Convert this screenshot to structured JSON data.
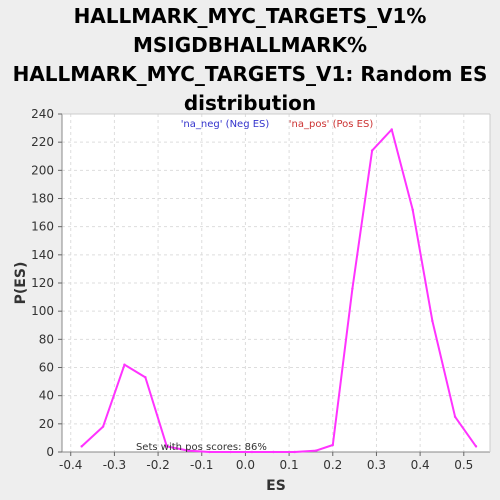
{
  "chart_data": {
    "type": "line",
    "title_lines": [
      "HALLMARK_MYC_TARGETS_V1%",
      "MSIGDBHALLMARK%",
      "HALLMARK_MYC_TARGETS_V1: Random ES",
      "distribution"
    ],
    "xlabel": "ES",
    "ylabel": "P(ES)",
    "xlim": [
      -0.42,
      0.56
    ],
    "ylim": [
      0,
      240
    ],
    "xticks": [
      -0.4,
      -0.3,
      -0.2,
      -0.1,
      0.0,
      0.1,
      0.2,
      0.3,
      0.4,
      0.5
    ],
    "xtick_labels": [
      "-0.4",
      "-0.3",
      "-0.2",
      "-0.1",
      "0.0",
      "0.1",
      "0.2",
      "0.3",
      "0.4",
      "0.5"
    ],
    "yticks": [
      0,
      20,
      40,
      60,
      80,
      100,
      120,
      140,
      160,
      180,
      200,
      220,
      240
    ],
    "grid": true,
    "series": [
      {
        "color": "#FF33FF",
        "x": [
          -0.375,
          -0.326,
          -0.277,
          -0.229,
          -0.18,
          -0.131,
          -0.082,
          -0.034,
          0.015,
          0.064,
          0.113,
          0.162,
          0.2,
          0.245,
          0.29,
          0.335,
          0.383,
          0.428,
          0.48,
          0.528
        ],
        "y": [
          4,
          18,
          62,
          53,
          4,
          1,
          0,
          0,
          0,
          0,
          0,
          1,
          5,
          116,
          214,
          229,
          172,
          93,
          25,
          4
        ]
      }
    ],
    "legend": [
      {
        "label": "'na_neg' (Neg ES)",
        "color": "#3333CC"
      },
      {
        "label": "'na_pos' (Pos ES)",
        "color": "#CC3333"
      }
    ],
    "annotation": "Sets with pos scores: 86%"
  }
}
